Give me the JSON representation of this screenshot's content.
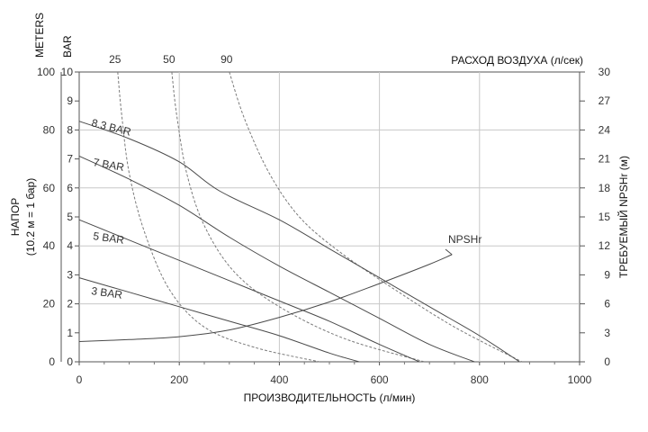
{
  "chart_data": {
    "type": "line",
    "xlabel": "ПРОИЗВОДИТЕЛЬНОСТЬ (л/мин)",
    "ylabel_line1": "НАПОР",
    "ylabel_line2": "(10.2 м = 1 бар)",
    "y2label": "ТРЕБУЕМЫЙ NPSHr (м)",
    "top_axis_title": "РАСХОД ВОЗДУХА (л/сек)",
    "unit_meters": "METERS",
    "unit_bar": "BAR",
    "xlim": [
      0,
      1000
    ],
    "ylim_meters": [
      0,
      100
    ],
    "ylim_bar": [
      0,
      10
    ],
    "ylim_right": [
      0,
      30
    ],
    "x_ticks": [
      "0",
      "200",
      "400",
      "600",
      "800",
      "1000"
    ],
    "y_meter_ticks": [
      "0",
      "20",
      "40",
      "60",
      "80",
      "100"
    ],
    "y_bar_ticks": [
      "0",
      "1",
      "2",
      "3",
      "4",
      "5",
      "6",
      "7",
      "8",
      "9",
      "10"
    ],
    "y_right_ticks": [
      "0",
      "3",
      "6",
      "9",
      "12",
      "15",
      "18",
      "21",
      "24",
      "27",
      "30"
    ],
    "air_ticks": [
      "25",
      "50",
      "90"
    ],
    "grid": true,
    "series": [
      {
        "name": "8.3 BAR",
        "x": [
          0,
          100,
          200,
          280,
          400,
          500,
          600,
          700,
          800,
          880
        ],
        "y": [
          8.3,
          7.7,
          6.9,
          5.9,
          4.9,
          3.9,
          2.9,
          1.9,
          0.9,
          0
        ]
      },
      {
        "name": "7 BAR",
        "x": [
          0,
          100,
          200,
          300,
          400,
          500,
          600,
          700,
          790
        ],
        "y": [
          7.1,
          6.3,
          5.4,
          4.3,
          3.3,
          2.4,
          1.5,
          0.6,
          0
        ]
      },
      {
        "name": "5 BAR",
        "x": [
          0,
          100,
          200,
          300,
          400,
          500,
          600,
          680
        ],
        "y": [
          4.9,
          4.2,
          3.5,
          2.8,
          2.1,
          1.4,
          0.6,
          0
        ]
      },
      {
        "name": "3 BAR",
        "x": [
          0,
          100,
          200,
          300,
          400,
          500,
          560
        ],
        "y": [
          2.9,
          2.4,
          1.9,
          1.4,
          0.9,
          0.3,
          0
        ]
      },
      {
        "name": "NPSHr",
        "x": [
          0,
          100,
          200,
          300,
          400,
          500,
          600,
          700,
          745
        ],
        "y_right": [
          2.1,
          2.3,
          2.6,
          3.3,
          4.6,
          6.2,
          8.1,
          10.1,
          11.1
        ]
      }
    ],
    "air_consumption": [
      {
        "name": "25",
        "x": [
          77,
          85,
          100,
          130,
          180,
          250,
          350,
          480
        ],
        "y": [
          10,
          8.5,
          6.5,
          4.5,
          2.5,
          1.2,
          0.5,
          0
        ]
      },
      {
        "name": "50",
        "x": [
          185,
          195,
          215,
          250,
          310,
          400,
          530,
          690
        ],
        "y": [
          10,
          8.5,
          6.5,
          4.7,
          3.1,
          1.9,
          0.8,
          0
        ]
      },
      {
        "name": "90",
        "x": [
          300,
          330,
          380,
          440,
          520,
          630,
          750,
          885
        ],
        "y": [
          10,
          8.4,
          6.5,
          5.0,
          3.8,
          2.5,
          1.2,
          0
        ]
      }
    ]
  }
}
